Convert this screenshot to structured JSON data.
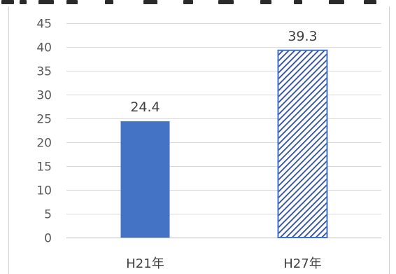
{
  "chart_data": {
    "type": "bar",
    "title": "",
    "xlabel": "",
    "ylabel": "",
    "categories": [
      "H21年",
      "H27年"
    ],
    "values": [
      24.4,
      39.3
    ],
    "data_labels": [
      "24.4",
      "39.3"
    ],
    "ylim": [
      0,
      45
    ],
    "yticks": [
      0,
      5,
      10,
      15,
      20,
      25,
      30,
      35,
      40,
      45
    ],
    "grid": true,
    "legend": "none",
    "bar_styles": [
      "solid",
      "diagonal-hatch"
    ],
    "colors": {
      "bar": "#4472c4",
      "hatch": "#2f4f9a",
      "grid": "#d9d9d9",
      "text": "#595959"
    }
  }
}
